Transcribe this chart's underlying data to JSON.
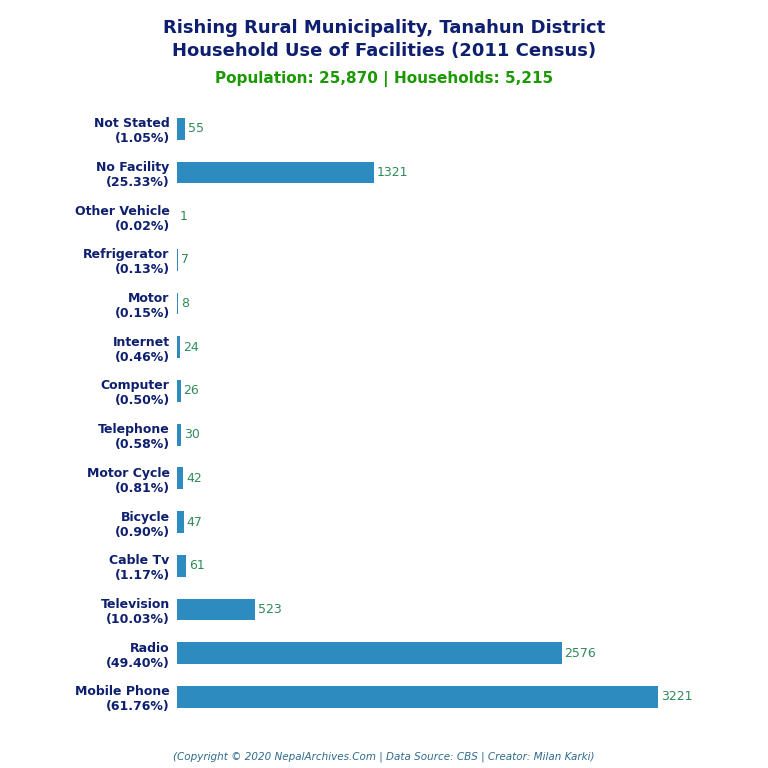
{
  "title_line1": "Rishing Rural Municipality, Tanahun District",
  "title_line2": "Household Use of Facilities (2011 Census)",
  "subtitle": "Population: 25,870 | Households: 5,215",
  "title_color": "#0d1f6e",
  "subtitle_color": "#1a9900",
  "footer": "(Copyright © 2020 NepalArchives.Com | Data Source: CBS | Creator: Milan Karki)",
  "footer_color": "#2e6b8b",
  "categories": [
    "Not Stated\n(1.05%)",
    "No Facility\n(25.33%)",
    "Other Vehicle\n(0.02%)",
    "Refrigerator\n(0.13%)",
    "Motor\n(0.15%)",
    "Internet\n(0.46%)",
    "Computer\n(0.50%)",
    "Telephone\n(0.58%)",
    "Motor Cycle\n(0.81%)",
    "Bicycle\n(0.90%)",
    "Cable Tv\n(1.17%)",
    "Television\n(10.03%)",
    "Radio\n(49.40%)",
    "Mobile Phone\n(61.76%)"
  ],
  "values": [
    55,
    1321,
    1,
    7,
    8,
    24,
    26,
    30,
    42,
    47,
    61,
    523,
    2576,
    3221
  ],
  "bar_color": "#2e8bbf",
  "value_color": "#2e8b57",
  "background_color": "#ffffff",
  "xlim": [
    0,
    3700
  ],
  "bar_height": 0.5,
  "figsize": [
    7.68,
    7.68
  ],
  "dpi": 100
}
